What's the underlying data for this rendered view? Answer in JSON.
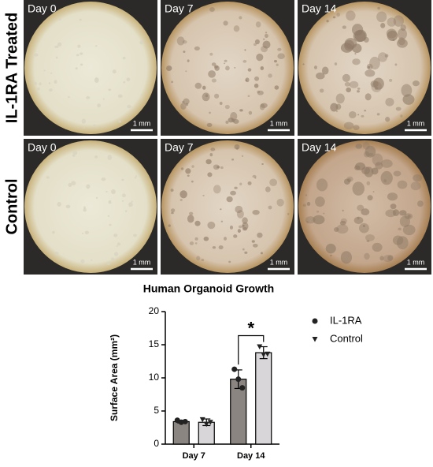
{
  "panels": {
    "rows": [
      {
        "label": "IL-1RA Treated",
        "images": [
          {
            "label": "Day 0",
            "scale": "1 mm"
          },
          {
            "label": "Day 7",
            "scale": "1 mm"
          },
          {
            "label": "Day 14",
            "scale": "1 mm"
          }
        ]
      },
      {
        "label": "Control",
        "images": [
          {
            "label": "Day 0",
            "scale": "1 mm"
          },
          {
            "label": "Day 7",
            "scale": "1 mm"
          },
          {
            "label": "Day 14",
            "scale": "1 mm"
          }
        ]
      }
    ]
  },
  "chart_data": {
    "type": "bar",
    "title": "Human Organoid Growth",
    "y_label": "Surface Area (mm²)",
    "categories": [
      "Day 7",
      "Day 14"
    ],
    "series": [
      {
        "name": "IL-1RA",
        "color": "#8a8581",
        "marker": "circle",
        "values": [
          3.4,
          9.8
        ],
        "errors": [
          0.2,
          1.4
        ],
        "points": [
          [
            3.6,
            3.3,
            3.4
          ],
          [
            11.3,
            9.8,
            8.5
          ]
        ]
      },
      {
        "name": "Control",
        "color": "#d8d6d8",
        "marker": "triangle",
        "values": [
          3.3,
          13.8
        ],
        "errors": [
          0.5,
          0.9
        ],
        "points": [
          [
            3.7,
            3.0,
            3.3
          ],
          [
            14.7,
            13.5,
            13.6
          ]
        ]
      }
    ],
    "ylim": [
      0,
      20
    ],
    "yticks": [
      0,
      5,
      10,
      15,
      20
    ],
    "legend": "right",
    "significance": {
      "label": "*",
      "category": "Day 14"
    }
  }
}
